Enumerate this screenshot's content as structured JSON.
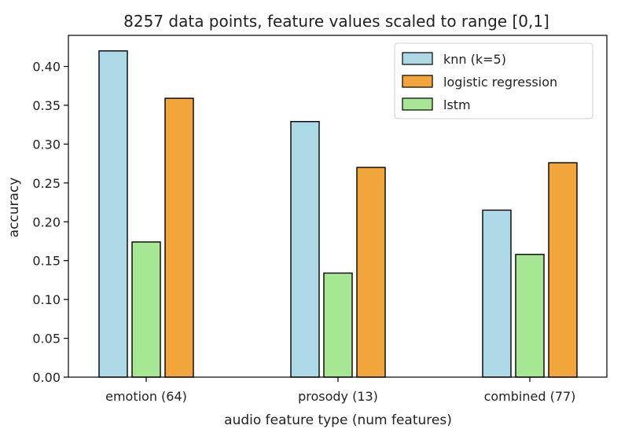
{
  "chart_data": {
    "type": "bar",
    "title": "8257 data points, feature values scaled to range [0,1]",
    "xlabel": "audio feature type (num features)",
    "ylabel": "accuracy",
    "categories": [
      "emotion (64)",
      "prosody (13)",
      "combined (77)"
    ],
    "series": [
      {
        "name": "knn (k=5)",
        "color": "#add8e6",
        "values": [
          0.42,
          0.329,
          0.215
        ]
      },
      {
        "name": "lstm",
        "color": "#a5e793",
        "values": [
          0.174,
          0.134,
          0.158
        ]
      },
      {
        "name": "logistic regression",
        "color": "#f2a53b",
        "values": [
          0.359,
          0.27,
          0.276
        ]
      }
    ],
    "legend_order": [
      "knn (k=5)",
      "logistic regression",
      "lstm"
    ],
    "legend_position": "top-right",
    "ylim": [
      0,
      0.44
    ],
    "yticks": [
      "0.00",
      "0.05",
      "0.10",
      "0.15",
      "0.20",
      "0.25",
      "0.30",
      "0.35",
      "0.40"
    ],
    "grid": false
  }
}
